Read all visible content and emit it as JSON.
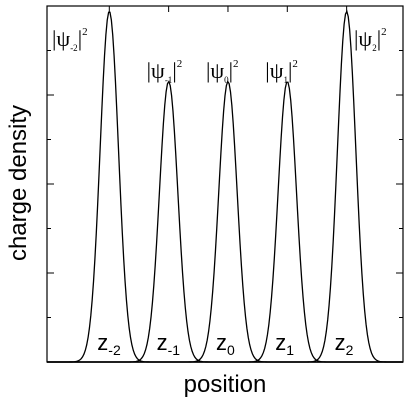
{
  "chart_data": {
    "type": "line",
    "xlabel": "position",
    "ylabel": "charge density",
    "grid": false,
    "legend": "none",
    "peaks": [
      {
        "center_label": "z",
        "center_sub": "-2",
        "wf_label": "|ψ",
        "wf_sub": "-2",
        "wf_close": "|",
        "wf_sup": "2",
        "center": -2,
        "amplitude": 1.0
      },
      {
        "center_label": "z",
        "center_sub": "-1",
        "wf_label": "|ψ",
        "wf_sub": "-1",
        "wf_close": "|",
        "wf_sup": "2",
        "center": -1,
        "amplitude": 0.8
      },
      {
        "center_label": "z",
        "center_sub": "0",
        "wf_label": "|ψ",
        "wf_sub": "0",
        "wf_close": "|",
        "wf_sup": "2",
        "center": 0,
        "amplitude": 0.8
      },
      {
        "center_label": "z",
        "center_sub": "1",
        "wf_label": "|ψ",
        "wf_sub": "1",
        "wf_close": "|",
        "wf_sup": "2",
        "center": 1,
        "amplitude": 0.8
      },
      {
        "center_label": "z",
        "center_sub": "2",
        "wf_label": "|ψ",
        "wf_sub": "2",
        "wf_close": "|",
        "wf_sup": "2",
        "center": 2,
        "amplitude": 1.0
      }
    ],
    "xlim": [
      -3.05,
      2.95
    ],
    "ylim": [
      0,
      1.0
    ],
    "line_color": "#000000"
  }
}
